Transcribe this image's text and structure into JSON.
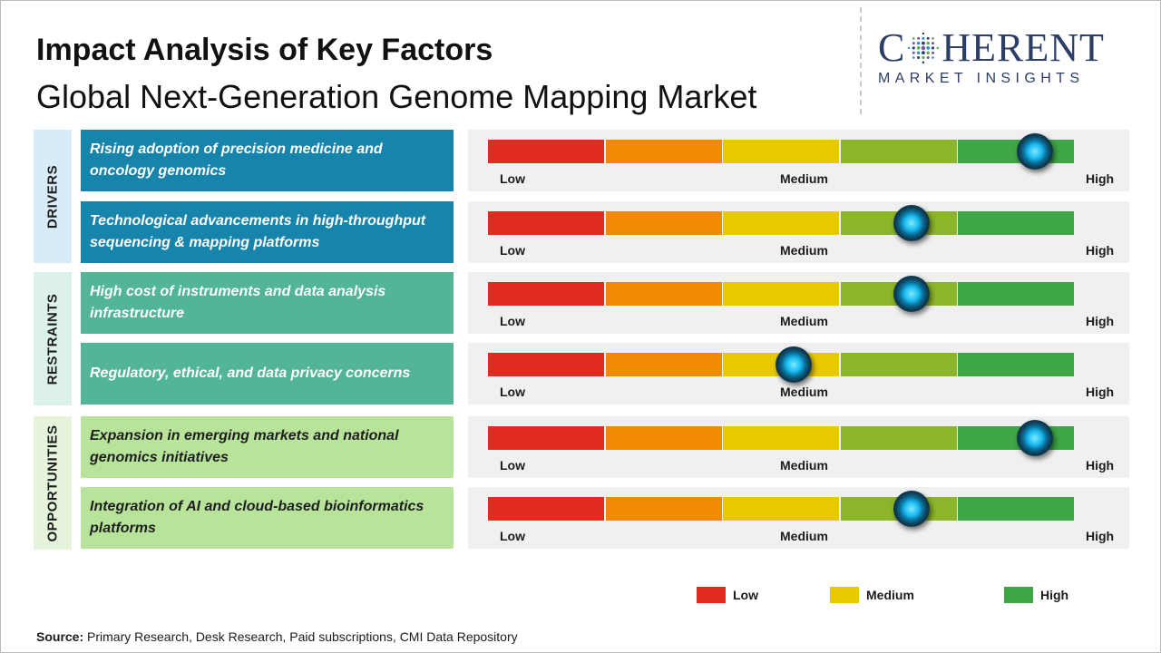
{
  "title": "Impact Analysis of Key Factors",
  "subtitle": "Global Next-Generation Genome Mapping Market",
  "logo": {
    "top_text_left": "C",
    "top_text_right": "HERENT",
    "bottom_text": "MARKET INSIGHTS",
    "dots_icon": "dotted-circle-icon"
  },
  "colors": {
    "drivers_cat": "#d7ecf7",
    "drivers_box": "#1784ab",
    "restraints_cat": "#ddf1ec",
    "restraints_box": "#52b597",
    "opportunities_cat": "#e6f4dc",
    "opportunities_box": "#b7e49a",
    "segments": [
      "#e02b1e",
      "#f08a00",
      "#e8c900",
      "#8db52a",
      "#3fa646"
    ]
  },
  "scale_labels": {
    "low": "Low",
    "medium": "Medium",
    "high": "High"
  },
  "categories": [
    {
      "key": "drivers",
      "label": "DRIVERS"
    },
    {
      "key": "restraints",
      "label": "RESTRAINTS"
    },
    {
      "key": "opportunities",
      "label": "OPPORTUNITIES"
    }
  ],
  "chart_data": {
    "type": "gauge-scale",
    "scale": [
      "Low",
      "Medium",
      "High"
    ],
    "value_range": [
      0,
      1
    ],
    "factors": [
      {
        "category": "DRIVERS",
        "label": "Rising adoption of precision medicine and oncology genomics",
        "impact": 0.93
      },
      {
        "category": "DRIVERS",
        "label": "Technological advancements in high-throughput sequencing & mapping platforms",
        "impact": 0.72
      },
      {
        "category": "RESTRAINTS",
        "label": "High cost of instruments and data analysis infrastructure",
        "impact": 0.72
      },
      {
        "category": "RESTRAINTS",
        "label": "Regulatory, ethical, and data privacy concerns",
        "impact": 0.52
      },
      {
        "category": "OPPORTUNITIES",
        "label": "Expansion in emerging markets and national genomics initiatives",
        "impact": 0.93
      },
      {
        "category": "OPPORTUNITIES",
        "label": "Integration of AI and cloud-based bioinformatics platforms",
        "impact": 0.72
      }
    ],
    "legend": [
      {
        "label": "Low",
        "color": "#e02b1e"
      },
      {
        "label": "Medium",
        "color": "#e8c900"
      },
      {
        "label": "High",
        "color": "#3fa646"
      }
    ]
  },
  "source": {
    "label": "Source:",
    "text": " Primary Research, Desk Research, Paid subscriptions, CMI Data Repository"
  }
}
